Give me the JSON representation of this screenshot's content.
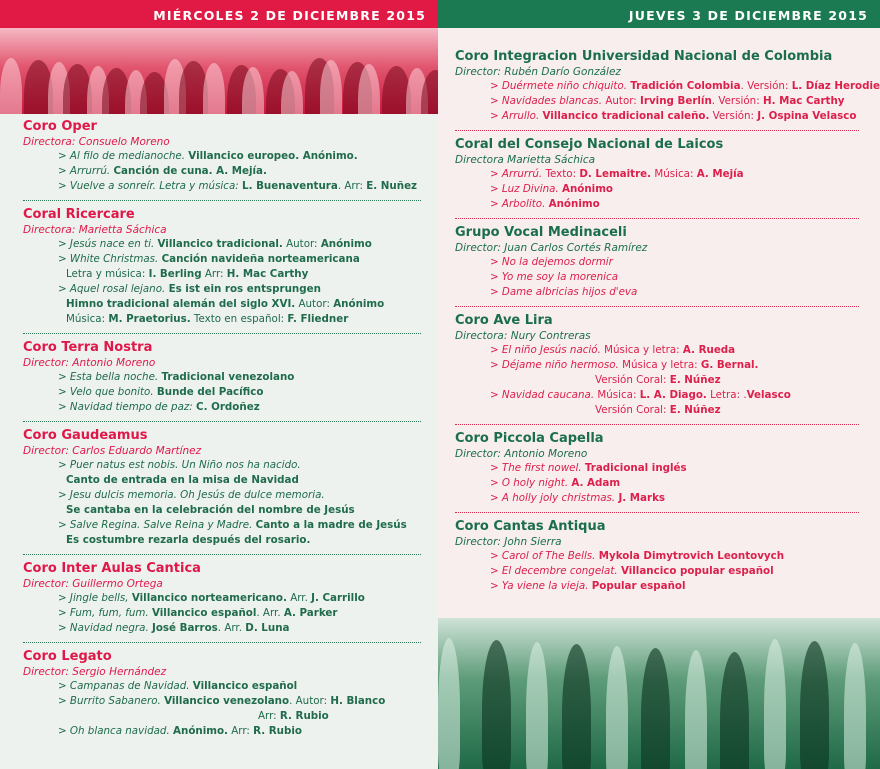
{
  "colors": {
    "red": "#e01a45",
    "green": "#1b7a52"
  },
  "left": {
    "header": "MIÉRCOLES 2 DE DICIEMBRE 2015",
    "groups": [
      {
        "name": "Coro Oper",
        "director": "Directora: Consuelo Moreno",
        "lines": [
          [
            [
              "i",
              "> Al filo de medianoche. "
            ],
            [
              "b",
              "Villancico europeo. Anónimo."
            ]
          ],
          [
            [
              "i",
              "> Arrurrú. "
            ],
            [
              "b",
              "Canción de cuna. A. Mejía."
            ]
          ],
          [
            [
              "i",
              "> Vuelve a sonreír. Letra y música: "
            ],
            [
              "b",
              "L. Buenaventura"
            ],
            [
              "n",
              ". Arr: "
            ],
            [
              "b",
              "E. Nuñez"
            ]
          ]
        ]
      },
      {
        "name": "Coral Ricercare",
        "director": "Directora: Marietta Sáchica",
        "lines": [
          [
            [
              "i",
              "> Jesús nace en ti. "
            ],
            [
              "b",
              "Villancico tradicional."
            ],
            [
              "n",
              " Autor: "
            ],
            [
              "b",
              "Anónimo"
            ]
          ],
          [
            [
              "i",
              "> White Christmas. "
            ],
            [
              "b",
              "Canción navideña norteamericana"
            ]
          ],
          [
            [
              "n",
              "Letra y música: "
            ],
            [
              "b",
              "I. Berling"
            ],
            [
              "n",
              "  Arr: "
            ],
            [
              "b",
              "H. Mac Carthy"
            ]
          ],
          [
            [
              "i",
              "> Aquel rosal lejano. "
            ],
            [
              "b",
              "Es ist ein ros entsprungen"
            ]
          ],
          [
            [
              "b",
              "Himno tradicional alemán del siglo XVI."
            ],
            [
              "n",
              " Autor: "
            ],
            [
              "b",
              "Anónimo"
            ]
          ],
          [
            [
              "n",
              "Música: "
            ],
            [
              "b",
              "M. Praetorius."
            ],
            [
              "n",
              " Texto en español: "
            ],
            [
              "b",
              "F. Fliedner"
            ]
          ]
        ]
      },
      {
        "name": "Coro Terra Nostra",
        "director": "Director: Antonio Moreno",
        "lines": [
          [
            [
              "i",
              "> Esta bella noche. "
            ],
            [
              "b",
              "Tradicional venezolano"
            ]
          ],
          [
            [
              "i",
              "> Velo que bonito. "
            ],
            [
              "b",
              "Bunde del Pacífico"
            ]
          ],
          [
            [
              "i",
              "> Navidad tiempo de paz: "
            ],
            [
              "b",
              "C. Ordoñez"
            ]
          ]
        ]
      },
      {
        "name": "Coro Gaudeamus",
        "director": "Director: Carlos Eduardo Martínez",
        "lines": [
          [
            [
              "i",
              "> Puer natus est nobis. Un Niño nos ha nacido."
            ]
          ],
          [
            [
              "b",
              "Canto de entrada en la misa de Navidad"
            ]
          ],
          [
            [
              "i",
              "> Jesu dulcis memoria. Oh Jesús de dulce memoria."
            ]
          ],
          [
            [
              "b",
              "Se cantaba en la celebración del nombre de Jesús"
            ]
          ],
          [
            [
              "i",
              "> Salve Regina. Salve Reina y Madre. "
            ],
            [
              "b",
              "Canto a la madre de Jesús"
            ]
          ],
          [
            [
              "b",
              "Es costumbre rezarla después del  rosario."
            ]
          ]
        ]
      },
      {
        "name": "Coro Inter Aulas Cantica",
        "director": "Director: Guillermo Ortega",
        "lines": [
          [
            [
              "i",
              "> Jingle bells, "
            ],
            [
              "b",
              "Villancico norteamericano."
            ],
            [
              "n",
              " Arr. "
            ],
            [
              "b",
              "J. Carrillo"
            ]
          ],
          [
            [
              "i",
              "> Fum, fum, fum. "
            ],
            [
              "b",
              "Villancico español"
            ],
            [
              "n",
              ". Arr. "
            ],
            [
              "b",
              "A. Parker"
            ]
          ],
          [
            [
              "i",
              "> Navidad negra. "
            ],
            [
              "b",
              "José Barros"
            ],
            [
              "n",
              ". Arr. "
            ],
            [
              "b",
              "D. Luna"
            ]
          ]
        ]
      },
      {
        "name": "Coro Legato",
        "director": "Director: Sergio Hernández",
        "lines": [
          [
            [
              "i",
              "> Campanas de Navidad. "
            ],
            [
              "b",
              "Villancico español"
            ]
          ],
          [
            [
              "i",
              "> Burrito Sabanero. "
            ],
            [
              "b",
              "Villancico venezolano"
            ],
            [
              "n",
              ". Autor: "
            ],
            [
              "b",
              "H. Blanco"
            ]
          ],
          [
            [
              "n",
              "Arr: "
            ],
            [
              "b",
              "R. Rubio"
            ]
          ],
          [
            [
              "i",
              "> Oh blanca navidad. "
            ],
            [
              "b",
              "Anónimo."
            ],
            [
              "n",
              " Arr: "
            ],
            [
              "b",
              "R. Rubio"
            ]
          ]
        ]
      }
    ]
  },
  "right": {
    "header": "JUEVES 3 DE DICIEMBRE 2015",
    "groups": [
      {
        "name": "Coro Integracion Universidad Nacional de Colombia",
        "director": "Director: Rubén Darío González",
        "lines": [
          [
            [
              "i",
              "> Duérmete niño chiquito. "
            ],
            [
              "b",
              "Tradición Colombia"
            ],
            [
              "n",
              ". Versión: "
            ],
            [
              "b",
              "L. Díaz Herodier"
            ]
          ],
          [
            [
              "i",
              "> Navidades blancas. "
            ],
            [
              "n",
              "Autor: "
            ],
            [
              "b",
              "Irving Berlín"
            ],
            [
              "n",
              ". Versión: "
            ],
            [
              "b",
              "H. Mac Carthy"
            ]
          ],
          [
            [
              "i",
              "> Arrullo. "
            ],
            [
              "b",
              "Villancico tradicional caleño."
            ],
            [
              "n",
              " Versión: "
            ],
            [
              "b",
              "J. Ospina Velasco"
            ]
          ]
        ]
      },
      {
        "name": "Coral del Consejo Nacional de Laicos",
        "director": " Directora Marietta Sáchica",
        "lines": [
          [
            [
              "i",
              "> Arrurrú. "
            ],
            [
              "n",
              "Texto: "
            ],
            [
              "b",
              "D. Lemaitre."
            ],
            [
              "n",
              "  Música: "
            ],
            [
              "b",
              "A. Mejía"
            ]
          ],
          [
            [
              "i",
              "> Luz Divina. "
            ],
            [
              "b",
              "Anónimo"
            ]
          ],
          [
            [
              "i",
              "> Arbolito. "
            ],
            [
              "b",
              "Anónimo"
            ]
          ]
        ]
      },
      {
        "name": "Grupo Vocal Medinaceli",
        "director": "Director: Juan Carlos Cortés Ramírez",
        "lines": [
          [
            [
              "i",
              "> No la  dejemos dormir"
            ]
          ],
          [
            [
              "i",
              "> Yo me soy la morenica"
            ]
          ],
          [
            [
              "i",
              "> Dame albricias hijos d'eva"
            ]
          ]
        ]
      },
      {
        "name": "Coro Ave Lira",
        "director": " Directora:  Nury Contreras",
        "lines": [
          [
            [
              "i",
              "> El niño Jesús nació. "
            ],
            [
              "n",
              "Música y letra: "
            ],
            [
              "b",
              "A. Rueda"
            ]
          ],
          [
            [
              "i",
              "> Déjame niño hermoso. "
            ],
            [
              "n",
              "Música y letra: "
            ],
            [
              "b",
              "G. Bernal."
            ]
          ],
          [
            [
              "n",
              "Versión Coral: "
            ],
            [
              "b",
              "E. Núñez"
            ]
          ],
          [
            [
              "i",
              "> Navidad caucana. "
            ],
            [
              "n",
              "Música: "
            ],
            [
              "b",
              "L. A. Diago."
            ],
            [
              "n",
              " Letra: ."
            ],
            [
              "b",
              "Velasco"
            ]
          ],
          [
            [
              "n",
              "Versión Coral: "
            ],
            [
              "b",
              "E. Núñez"
            ]
          ]
        ]
      },
      {
        "name": "Coro Piccola Capella",
        "director": " Director: Antonio Moreno",
        "lines": [
          [
            [
              "i",
              "> The first nowel. "
            ],
            [
              "b",
              "Tradicional inglés"
            ]
          ],
          [
            [
              "i",
              "> O holy night. "
            ],
            [
              "b",
              "A. Adam"
            ]
          ],
          [
            [
              "i",
              "> A holly joly christmas. "
            ],
            [
              "b",
              "J. Marks"
            ]
          ]
        ]
      },
      {
        "name": "Coro Cantas Antiqua",
        "director": " Director: John Sierra",
        "lines": [
          [
            [
              "i",
              "> Carol of The Bells. "
            ],
            [
              "b",
              "Mykola Dimytrovich Leontovych"
            ]
          ],
          [
            [
              "i",
              "> El decembre congelat. "
            ],
            [
              "b",
              "Villancico popular español"
            ]
          ],
          [
            [
              "i",
              "> Ya viene la vieja. "
            ],
            [
              "b",
              "Popular español"
            ]
          ]
        ]
      }
    ]
  }
}
